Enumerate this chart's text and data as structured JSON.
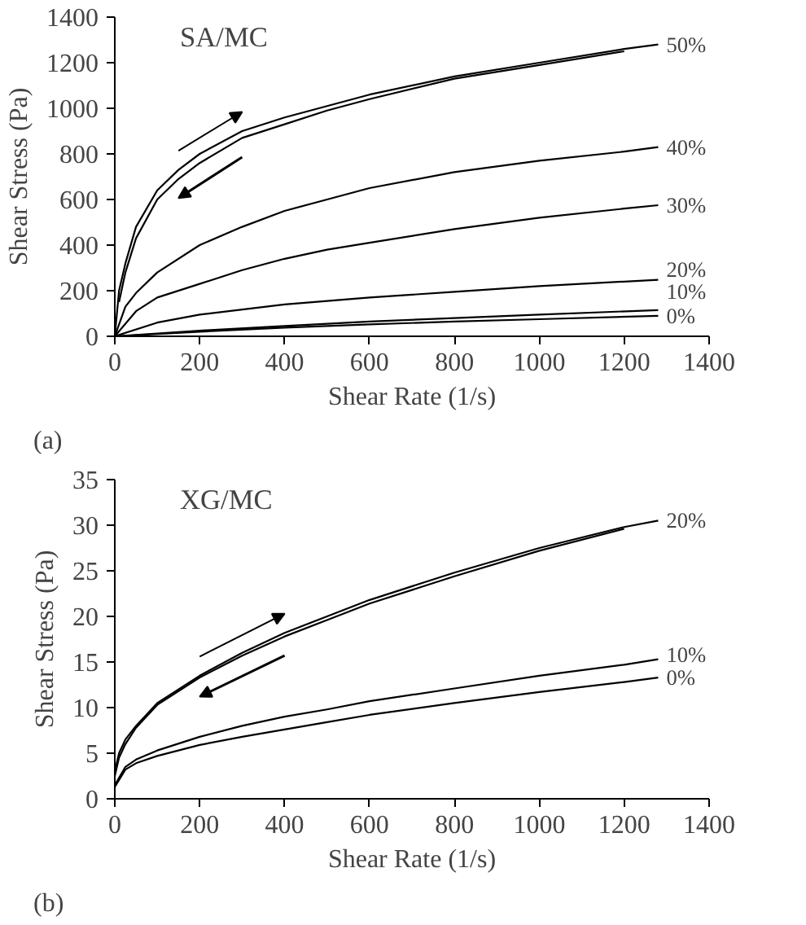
{
  "chart_data": [
    {
      "type": "line",
      "title": "SA/MC",
      "xlabel": "Shear Rate (1/s)",
      "ylabel": "Shear Stress (Pa)",
      "annotations": [
        "(a)"
      ],
      "xlim": [
        0,
        1400
      ],
      "xticks": [
        0,
        200,
        400,
        600,
        800,
        1000,
        1200,
        1400
      ],
      "ylim": [
        0,
        1400
      ],
      "yticks": [
        0,
        200,
        400,
        600,
        800,
        1000,
        1200,
        1400
      ],
      "grid": false,
      "marker": "none",
      "line_style": "solid",
      "series": [
        {
          "name": "50%",
          "color": "#000000",
          "x": [
            0,
            10,
            25,
            50,
            100,
            150,
            200,
            300,
            400,
            500,
            600,
            800,
            1000,
            1200,
            1280
          ],
          "values": [
            0,
            200,
            320,
            480,
            640,
            730,
            800,
            900,
            960,
            1010,
            1060,
            1140,
            1200,
            1260,
            1280
          ]
        },
        {
          "color": "#000000",
          "x": [
            10,
            25,
            50,
            100,
            150,
            200,
            300,
            400,
            500,
            600,
            800,
            1000,
            1200
          ],
          "values": [
            150,
            280,
            430,
            600,
            690,
            760,
            870,
            930,
            990,
            1040,
            1130,
            1190,
            1250
          ]
        },
        {
          "name": "40%",
          "color": "#000000",
          "x": [
            0,
            25,
            50,
            100,
            200,
            300,
            400,
            500,
            600,
            800,
            1000,
            1200,
            1280
          ],
          "values": [
            0,
            130,
            190,
            280,
            400,
            480,
            550,
            600,
            650,
            720,
            770,
            810,
            830
          ]
        },
        {
          "name": "30%",
          "color": "#000000",
          "x": [
            0,
            50,
            100,
            200,
            300,
            400,
            500,
            600,
            800,
            1000,
            1200,
            1280
          ],
          "values": [
            0,
            110,
            170,
            230,
            290,
            340,
            380,
            410,
            470,
            520,
            560,
            575
          ]
        },
        {
          "name": "20%",
          "color": "#000000",
          "x": [
            0,
            100,
            200,
            400,
            600,
            800,
            1000,
            1200,
            1280
          ],
          "values": [
            0,
            60,
            95,
            140,
            170,
            195,
            220,
            240,
            248
          ]
        },
        {
          "name": "10%",
          "color": "#000000",
          "x": [
            0,
            200,
            400,
            600,
            800,
            1000,
            1280
          ],
          "values": [
            0,
            25,
            45,
            65,
            80,
            95,
            115
          ]
        },
        {
          "name": "0%",
          "color": "#000000",
          "x": [
            0,
            200,
            400,
            600,
            800,
            1000,
            1280
          ],
          "values": [
            0,
            20,
            38,
            52,
            65,
            75,
            90
          ]
        }
      ]
    },
    {
      "type": "line",
      "title": "XG/MC",
      "xlabel": "Shear Rate (1/s)",
      "ylabel": "Shear Stress (Pa)",
      "annotations": [
        "(b)"
      ],
      "xlim": [
        0,
        1400
      ],
      "xticks": [
        0,
        200,
        400,
        600,
        800,
        1000,
        1200,
        1400
      ],
      "ylim": [
        0,
        35
      ],
      "yticks": [
        0,
        5,
        10,
        15,
        20,
        25,
        30,
        35
      ],
      "grid": false,
      "marker": "none",
      "line_style": "solid",
      "series": [
        {
          "name": "20%",
          "color": "#000000",
          "x": [
            0,
            10,
            25,
            50,
            100,
            200,
            300,
            400,
            500,
            600,
            800,
            1000,
            1200,
            1280
          ],
          "values": [
            3,
            5,
            6.5,
            8,
            10.5,
            13.5,
            16,
            18.2,
            20,
            21.8,
            24.8,
            27.5,
            29.8,
            30.5
          ]
        },
        {
          "color": "#000000",
          "x": [
            0,
            10,
            25,
            50,
            100,
            200,
            300,
            400,
            500,
            600,
            800,
            1000,
            1200
          ],
          "values": [
            2.5,
            4.5,
            6,
            7.8,
            10.3,
            13.3,
            15.7,
            17.8,
            19.6,
            21.4,
            24.4,
            27.2,
            29.6
          ]
        },
        {
          "name": "10%",
          "color": "#000000",
          "x": [
            0,
            25,
            50,
            100,
            200,
            300,
            400,
            500,
            600,
            800,
            1000,
            1200,
            1280
          ],
          "values": [
            1.5,
            3.5,
            4.3,
            5.3,
            6.8,
            8,
            9,
            9.8,
            10.7,
            12.1,
            13.5,
            14.7,
            15.3
          ]
        },
        {
          "name": "0%",
          "color": "#000000",
          "x": [
            0,
            25,
            50,
            100,
            200,
            300,
            400,
            500,
            600,
            800,
            1000,
            1200,
            1280
          ],
          "values": [
            1.3,
            3.2,
            3.9,
            4.7,
            5.9,
            6.8,
            7.6,
            8.4,
            9.2,
            10.5,
            11.7,
            12.8,
            13.3
          ]
        }
      ]
    }
  ]
}
